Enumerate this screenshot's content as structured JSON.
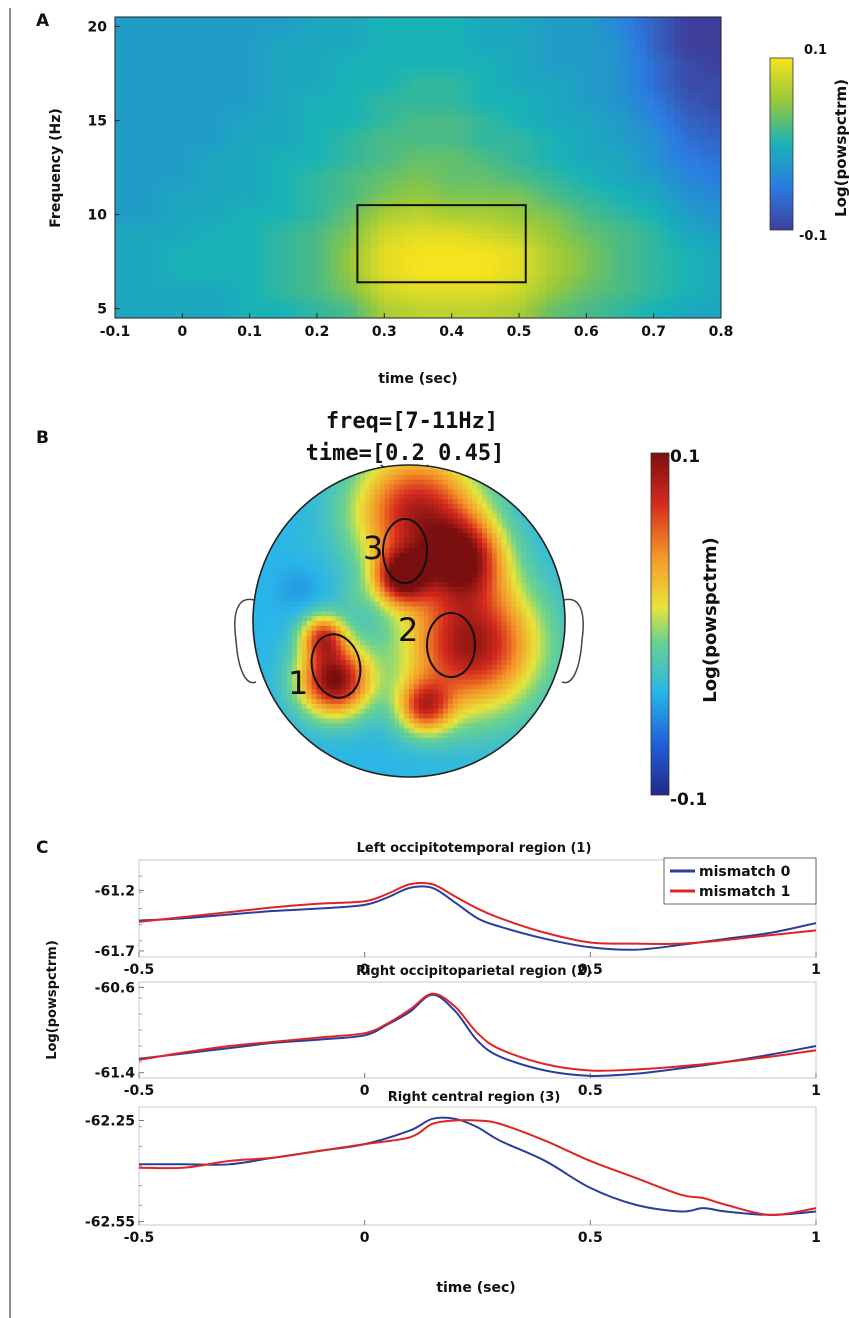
{
  "panel_labels": {
    "a": "A",
    "b": "B",
    "c": "C"
  },
  "colors": {
    "mismatch_0": "#2a3e9c",
    "mismatch_1": "#e02424",
    "parula_low": "#3e3f9b",
    "parula_high": "#f6e21e",
    "jet_low": "#202a88",
    "jet_high": "#7a0f0f"
  },
  "chart_data": [
    {
      "id": "A",
      "type": "heatmap",
      "xlabel": "time (sec)",
      "ylabel": "Frequency (Hz)",
      "xlim": [
        -0.1,
        0.8
      ],
      "ylim": [
        4.5,
        20.5
      ],
      "x_ticks": [
        -0.1,
        0,
        0.1,
        0.2,
        0.3,
        0.4,
        0.5,
        0.6,
        0.7,
        0.8
      ],
      "x_tick_labels": [
        "-0.1",
        "0",
        "0.1",
        "0.2",
        "0.3",
        "0.4",
        "0.5",
        "0.6",
        "0.7",
        "0.8"
      ],
      "y_ticks": [
        5,
        10,
        15,
        20
      ],
      "y_tick_labels": [
        "5",
        "10",
        "15",
        "20"
      ],
      "highlight_box": {
        "time": [
          0.26,
          0.51
        ],
        "freq": [
          6.4,
          10.5
        ]
      },
      "colorbar": {
        "label": "Log(powspctrm)",
        "min": -0.1,
        "max": 0.1,
        "max_label": "0.1",
        "min_label": "-0.1",
        "colormap": "parula"
      },
      "description_values": {
        "time_bins": [
          -0.1,
          -0.05,
          0,
          0.05,
          0.1,
          0.15,
          0.2,
          0.25,
          0.3,
          0.35,
          0.4,
          0.45,
          0.5,
          0.55,
          0.6,
          0.65,
          0.7,
          0.75,
          0.8
        ],
        "freq_bins": [
          5,
          6,
          7,
          8,
          9,
          10,
          11,
          12,
          13,
          14,
          15,
          16,
          17,
          18,
          19,
          20
        ],
        "values": [
          [
            -0.01,
            -0.01,
            -0.01,
            -0.01,
            0.0,
            0.0,
            0.01,
            0.02,
            0.06,
            0.07,
            0.07,
            0.07,
            0.06,
            0.03,
            0.02,
            0.01,
            0.0,
            -0.01,
            -0.01
          ],
          [
            -0.01,
            -0.01,
            -0.01,
            -0.01,
            0.0,
            0.01,
            0.02,
            0.04,
            0.08,
            0.09,
            0.09,
            0.09,
            0.08,
            0.05,
            0.03,
            0.02,
            0.01,
            0.0,
            -0.01
          ],
          [
            -0.01,
            -0.01,
            0.0,
            0.0,
            0.0,
            0.01,
            0.02,
            0.05,
            0.09,
            0.1,
            0.1,
            0.1,
            0.09,
            0.06,
            0.04,
            0.02,
            0.01,
            0.0,
            -0.01
          ],
          [
            -0.01,
            -0.01,
            0.0,
            0.0,
            0.0,
            0.01,
            0.02,
            0.05,
            0.09,
            0.1,
            0.1,
            0.1,
            0.09,
            0.06,
            0.04,
            0.02,
            0.01,
            0.0,
            -0.01
          ],
          [
            -0.01,
            -0.01,
            -0.01,
            0.0,
            0.0,
            0.01,
            0.02,
            0.04,
            0.08,
            0.09,
            0.09,
            0.08,
            0.07,
            0.05,
            0.03,
            0.02,
            0.01,
            -0.01,
            -0.02
          ],
          [
            -0.02,
            -0.02,
            -0.01,
            -0.01,
            0.0,
            0.0,
            0.01,
            0.03,
            0.06,
            0.07,
            0.06,
            0.06,
            0.05,
            0.04,
            0.02,
            0.01,
            0.0,
            -0.02,
            -0.03
          ],
          [
            -0.02,
            -0.02,
            -0.01,
            -0.01,
            -0.01,
            0.0,
            0.01,
            0.02,
            0.04,
            0.05,
            0.04,
            0.04,
            0.04,
            0.02,
            0.01,
            0.0,
            -0.01,
            -0.03,
            -0.04
          ],
          [
            -0.02,
            -0.02,
            -0.02,
            -0.01,
            -0.01,
            0.0,
            0.01,
            0.02,
            0.03,
            0.04,
            0.03,
            0.03,
            0.02,
            0.01,
            0.0,
            -0.01,
            -0.02,
            -0.04,
            -0.05
          ],
          [
            -0.02,
            -0.02,
            -0.02,
            -0.01,
            -0.01,
            0.0,
            0.0,
            0.01,
            0.02,
            0.03,
            0.03,
            0.02,
            0.01,
            0.0,
            -0.01,
            -0.01,
            -0.03,
            -0.05,
            -0.06
          ],
          [
            -0.02,
            -0.02,
            -0.02,
            -0.02,
            -0.01,
            -0.01,
            0.0,
            0.01,
            0.02,
            0.02,
            0.02,
            0.01,
            0.01,
            0.0,
            -0.01,
            -0.02,
            -0.03,
            -0.06,
            -0.07
          ],
          [
            -0.02,
            -0.02,
            -0.02,
            -0.02,
            -0.01,
            -0.01,
            0.0,
            0.0,
            0.01,
            0.02,
            0.02,
            0.01,
            0.0,
            -0.01,
            -0.01,
            -0.02,
            -0.04,
            -0.07,
            -0.08
          ],
          [
            -0.02,
            -0.02,
            -0.02,
            -0.02,
            -0.02,
            -0.01,
            0.0,
            0.0,
            0.01,
            0.01,
            0.01,
            0.0,
            0.0,
            -0.01,
            -0.02,
            -0.03,
            -0.05,
            -0.08,
            -0.09
          ],
          [
            -0.02,
            -0.02,
            -0.02,
            -0.02,
            -0.02,
            -0.01,
            -0.01,
            0.0,
            0.0,
            0.01,
            0.01,
            0.0,
            -0.01,
            -0.01,
            -0.02,
            -0.03,
            -0.06,
            -0.09,
            -0.09
          ],
          [
            -0.02,
            -0.02,
            -0.02,
            -0.02,
            -0.02,
            -0.01,
            -0.01,
            0.0,
            0.0,
            0.0,
            0.0,
            0.0,
            -0.01,
            -0.02,
            -0.02,
            -0.03,
            -0.06,
            -0.09,
            -0.1
          ],
          [
            -0.02,
            -0.02,
            -0.02,
            -0.02,
            -0.02,
            -0.01,
            -0.01,
            -0.01,
            0.0,
            0.0,
            0.0,
            -0.01,
            -0.01,
            -0.02,
            -0.02,
            -0.03,
            -0.07,
            -0.1,
            -0.1
          ],
          [
            -0.02,
            -0.02,
            -0.02,
            -0.02,
            -0.02,
            -0.02,
            -0.01,
            -0.01,
            0.0,
            0.0,
            0.0,
            -0.01,
            -0.01,
            -0.02,
            -0.02,
            -0.04,
            -0.07,
            -0.1,
            -0.1
          ]
        ]
      }
    },
    {
      "id": "B",
      "type": "heatmap",
      "title": "freq=[7-11Hz]",
      "subtitle": "time=[0.2 0.45]",
      "region_labels": [
        "1",
        "2",
        "3"
      ],
      "colorbar": {
        "label": "Log(powspctrm)",
        "min": -0.1,
        "max": 0.1,
        "max_label": "0.1",
        "min_label": "-0.1",
        "colormap": "jet"
      },
      "description_values": {
        "sources": [
          {
            "u": -0.48,
            "v": 0.38,
            "sigma": 0.16,
            "value": 0.1
          },
          {
            "u": 0.4,
            "v": 0.15,
            "sigma": 0.3,
            "value": 0.09
          },
          {
            "u": 0.05,
            "v": -0.7,
            "sigma": 0.28,
            "value": 0.08
          },
          {
            "u": 0.35,
            "v": -0.4,
            "sigma": 0.18,
            "value": 0.06
          },
          {
            "u": -0.05,
            "v": -0.28,
            "sigma": 0.12,
            "value": 0.07
          },
          {
            "u": -0.55,
            "v": 0.1,
            "sigma": 0.1,
            "value": 0.05
          },
          {
            "u": -0.7,
            "v": -0.2,
            "sigma": 0.1,
            "value": -0.05
          },
          {
            "u": -0.35,
            "v": -0.15,
            "sigma": 0.08,
            "value": -0.03
          },
          {
            "u": 0.1,
            "v": 0.55,
            "sigma": 0.12,
            "value": 0.05
          }
        ],
        "baseline": -0.04
      }
    },
    {
      "id": "C1",
      "type": "line",
      "title": "Left occipitotemporal region (1)",
      "ylabel": "Log(powspctrm)",
      "xlim": [
        -0.5,
        1
      ],
      "ylim": [
        -61.75,
        -60.95
      ],
      "x_ticks": [
        -0.5,
        0,
        0.5,
        1
      ],
      "x_tick_labels": [
        "-0.5",
        "0",
        "0.5",
        "1"
      ],
      "y_ticks": [
        -61.2,
        -61.7
      ],
      "y_tick_labels": [
        "-61.2",
        "-61.7"
      ],
      "legend": {
        "placement": "top-right",
        "entries": [
          "mismatch 0",
          "mismatch 1"
        ]
      },
      "x": [
        -0.5,
        -0.4,
        -0.3,
        -0.2,
        -0.1,
        0,
        0.05,
        0.1,
        0.15,
        0.2,
        0.25,
        0.3,
        0.4,
        0.5,
        0.6,
        0.7,
        0.8,
        0.9,
        1
      ],
      "series": [
        {
          "name": "mismatch 0",
          "values": [
            -61.45,
            -61.43,
            -61.4,
            -61.37,
            -61.35,
            -61.32,
            -61.26,
            -61.18,
            -61.18,
            -61.3,
            -61.43,
            -61.5,
            -61.6,
            -61.67,
            -61.69,
            -61.65,
            -61.6,
            -61.55,
            -61.47
          ]
        },
        {
          "name": "mismatch 1",
          "values": [
            -61.46,
            -61.42,
            -61.38,
            -61.34,
            -61.31,
            -61.29,
            -61.23,
            -61.15,
            -61.15,
            -61.25,
            -61.35,
            -61.43,
            -61.55,
            -61.63,
            -61.64,
            -61.64,
            -61.61,
            -61.57,
            -61.53
          ]
        }
      ]
    },
    {
      "id": "C2",
      "type": "line",
      "title": "Right occipitoparietal region (2)",
      "ylabel": "",
      "xlim": [
        -0.5,
        1
      ],
      "ylim": [
        -61.45,
        -60.55
      ],
      "x_ticks": [
        -0.5,
        0,
        0.5,
        1
      ],
      "x_tick_labels": [
        "-0.5",
        "0",
        "0.5",
        "1"
      ],
      "y_ticks": [
        -60.6,
        -61.4
      ],
      "y_tick_labels": [
        "-60.6",
        "-61.4"
      ],
      "x": [
        -0.5,
        -0.4,
        -0.3,
        -0.2,
        -0.1,
        0,
        0.05,
        0.1,
        0.15,
        0.2,
        0.25,
        0.3,
        0.4,
        0.5,
        0.6,
        0.7,
        0.8,
        0.9,
        1
      ],
      "series": [
        {
          "name": "mismatch 0",
          "values": [
            -61.27,
            -61.22,
            -61.17,
            -61.12,
            -61.09,
            -61.05,
            -60.95,
            -60.83,
            -60.67,
            -60.82,
            -61.1,
            -61.25,
            -61.38,
            -61.43,
            -61.41,
            -61.36,
            -61.3,
            -61.23,
            -61.15
          ]
        },
        {
          "name": "mismatch 1",
          "values": [
            -61.28,
            -61.21,
            -61.15,
            -61.11,
            -61.07,
            -61.03,
            -60.94,
            -60.81,
            -60.66,
            -60.78,
            -61.03,
            -61.18,
            -61.32,
            -61.38,
            -61.37,
            -61.34,
            -61.3,
            -61.25,
            -61.19
          ]
        }
      ]
    },
    {
      "id": "C3",
      "type": "line",
      "title": "Right central region (3)",
      "ylabel": "",
      "xlabel": "time (sec)",
      "xlim": [
        -0.5,
        1
      ],
      "ylim": [
        -62.56,
        -62.21
      ],
      "x_ticks": [
        -0.5,
        0,
        0.5,
        1
      ],
      "x_tick_labels": [
        "-0.5",
        "0",
        "0.5",
        "1"
      ],
      "y_ticks": [
        -62.25,
        -62.55
      ],
      "y_tick_labels": [
        "-62.25",
        "-62.55"
      ],
      "x": [
        -0.5,
        -0.4,
        -0.3,
        -0.2,
        -0.1,
        0,
        0.1,
        0.15,
        0.2,
        0.25,
        0.3,
        0.4,
        0.5,
        0.6,
        0.7,
        0.75,
        0.8,
        0.9,
        1
      ],
      "series": [
        {
          "name": "mismatch 0",
          "values": [
            -62.38,
            -62.38,
            -62.38,
            -62.36,
            -62.34,
            -62.32,
            -62.28,
            -62.245,
            -62.245,
            -62.27,
            -62.31,
            -62.37,
            -62.45,
            -62.5,
            -62.52,
            -62.51,
            -62.52,
            -62.53,
            -62.52
          ]
        },
        {
          "name": "mismatch 1",
          "values": [
            -62.39,
            -62.39,
            -62.37,
            -62.36,
            -62.34,
            -62.32,
            -62.3,
            -62.26,
            -62.25,
            -62.25,
            -62.26,
            -62.31,
            -62.37,
            -62.42,
            -62.47,
            -62.48,
            -62.5,
            -62.53,
            -62.51
          ]
        }
      ]
    }
  ]
}
